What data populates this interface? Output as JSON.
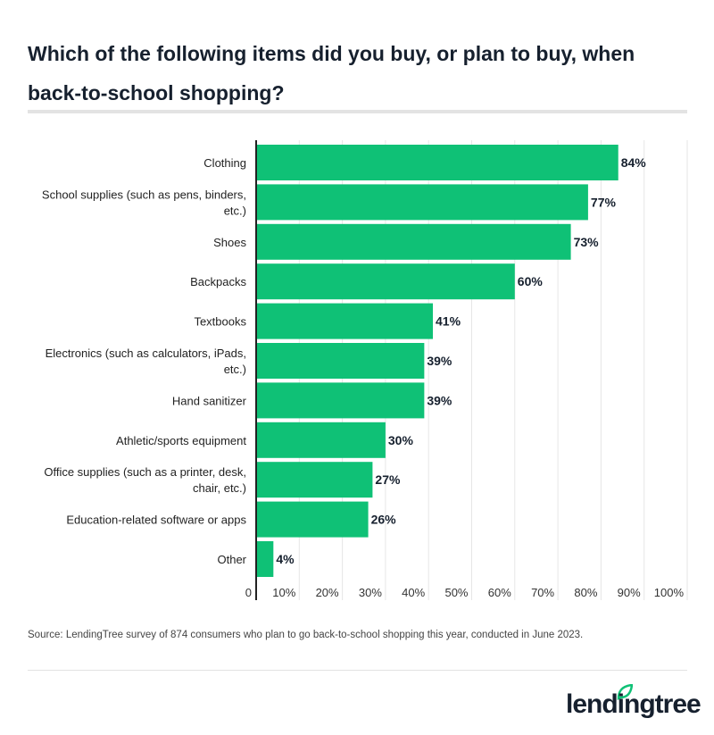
{
  "title": "Which of the following items did you buy, or plan to buy, when back-to-school shopping?",
  "source": "Source: LendingTree survey of 874 consumers who plan to go back-to-school shopping this year, conducted in June 2023.",
  "logo": {
    "text": "lendingtree",
    "icon": "leaf-icon"
  },
  "colors": {
    "bar": "#0fc176",
    "text": "#16202e",
    "grid": "#e6e6e6"
  },
  "chart_data": {
    "type": "bar",
    "orientation": "horizontal",
    "categories": [
      [
        "Clothing"
      ],
      [
        "School supplies (such as pens, binders,",
        "etc.)"
      ],
      [
        "Shoes"
      ],
      [
        "Backpacks"
      ],
      [
        "Textbooks"
      ],
      [
        "Electronics (such as calculators, iPads,",
        "etc.)"
      ],
      [
        "Hand sanitizer"
      ],
      [
        "Athletic/sports equipment"
      ],
      [
        "Office supplies (such as a printer, desk,",
        "chair, etc.)"
      ],
      [
        "Education-related software or apps"
      ],
      [
        "Other"
      ]
    ],
    "values": [
      84,
      77,
      73,
      60,
      41,
      39,
      39,
      30,
      27,
      26,
      4
    ],
    "data_labels": [
      "84%",
      "77%",
      "73%",
      "60%",
      "41%",
      "39%",
      "39%",
      "30%",
      "27%",
      "26%",
      "4%"
    ],
    "xlim": [
      0,
      100
    ],
    "ticks": [
      0,
      10,
      20,
      30,
      40,
      50,
      60,
      70,
      80,
      90,
      100
    ],
    "tick_labels": [
      "0",
      "10%",
      "20%",
      "30%",
      "40%",
      "50%",
      "60%",
      "70%",
      "80%",
      "90%",
      "100%"
    ],
    "grid": true
  }
}
